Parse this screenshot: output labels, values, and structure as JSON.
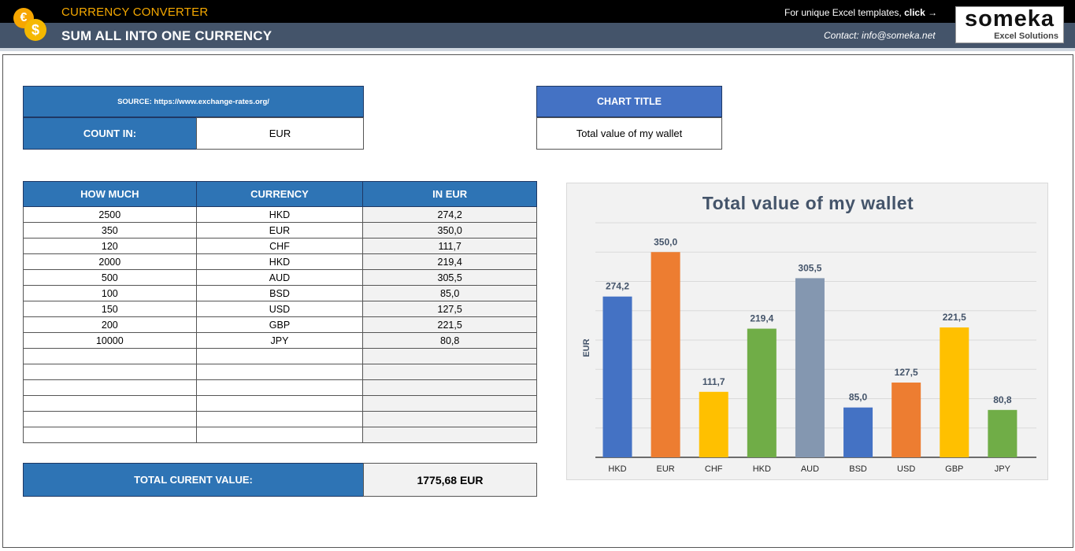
{
  "header": {
    "app_title": "CURRENCY CONVERTER",
    "subtitle": "SUM ALL INTO ONE CURRENCY",
    "promo_text": "For unique Excel templates, ",
    "promo_link": "click →",
    "contact": "Contact: info@someka.net",
    "logo_main": "someka",
    "logo_sub": "Excel Solutions",
    "coin_euro": "€",
    "coin_dollar": "$"
  },
  "settings": {
    "source_label": "SOURCE: https://www.exchange-rates.org/",
    "count_in_label": "COUNT IN:",
    "count_in_value": "EUR",
    "chart_title_label": "CHART TITLE",
    "chart_title_value": "Total value of my wallet"
  },
  "table": {
    "headers": [
      "HOW MUCH",
      "CURRENCY",
      "IN EUR"
    ],
    "rows": [
      [
        "2500",
        "HKD",
        "274,2"
      ],
      [
        "350",
        "EUR",
        "350,0"
      ],
      [
        "120",
        "CHF",
        "111,7"
      ],
      [
        "2000",
        "HKD",
        "219,4"
      ],
      [
        "500",
        "AUD",
        "305,5"
      ],
      [
        "100",
        "BSD",
        "85,0"
      ],
      [
        "150",
        "USD",
        "127,5"
      ],
      [
        "200",
        "GBP",
        "221,5"
      ],
      [
        "10000",
        "JPY",
        "80,8"
      ],
      [
        "",
        "",
        ""
      ],
      [
        "",
        "",
        ""
      ],
      [
        "",
        "",
        ""
      ],
      [
        "",
        "",
        ""
      ],
      [
        "",
        "",
        ""
      ],
      [
        "",
        "",
        ""
      ]
    ]
  },
  "total": {
    "label": "TOTAL CURENT VALUE:",
    "value": "1775,68 EUR"
  },
  "chart_data": {
    "type": "bar",
    "title": "Total value of my wallet",
    "xlabel": "",
    "ylabel": "EUR",
    "ylim": [
      0,
      400
    ],
    "gridlines": true,
    "categories": [
      "HKD",
      "EUR",
      "CHF",
      "HKD",
      "AUD",
      "BSD",
      "USD",
      "GBP",
      "JPY"
    ],
    "values": [
      274.2,
      350.0,
      111.7,
      219.4,
      305.5,
      85.0,
      127.5,
      221.5,
      80.8
    ],
    "value_labels": [
      "274,2",
      "350,0",
      "111,7",
      "219,4",
      "305,5",
      "85,0",
      "127,5",
      "221,5",
      "80,8"
    ],
    "colors": [
      "#4472c4",
      "#ed7d31",
      "#ffc000",
      "#70ad47",
      "#8497b0",
      "#4472c4",
      "#ed7d31",
      "#ffc000",
      "#70ad47"
    ]
  }
}
